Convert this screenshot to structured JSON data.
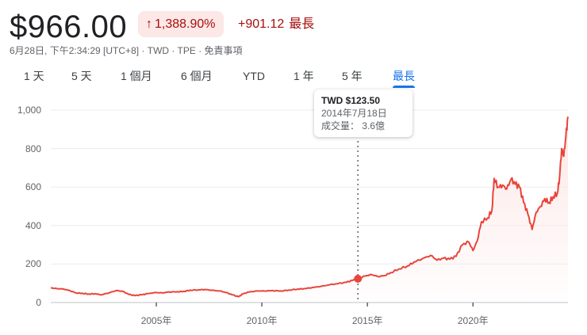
{
  "header": {
    "price": "$966.00",
    "change_arrow": "↑",
    "change_percent": "1,388.90%",
    "change_value": "+901.12",
    "period_label": "最長",
    "meta": {
      "timestamp": "6月28日, 下午2:34:29 [UTC+8]",
      "currency": "TWD",
      "exchange": "TPE",
      "disclaimer": "免責事項",
      "sep": " · "
    }
  },
  "tabs": [
    {
      "label": "1 天",
      "active": false
    },
    {
      "label": "5 天",
      "active": false
    },
    {
      "label": "1 個月",
      "active": false
    },
    {
      "label": "6 個月",
      "active": false
    },
    {
      "label": "YTD",
      "active": false
    },
    {
      "label": "1 年",
      "active": false
    },
    {
      "label": "5 年",
      "active": false
    },
    {
      "label": "最長",
      "active": true
    }
  ],
  "tooltip": {
    "price": "TWD $123.50",
    "date": "2014年7月18日",
    "volume_label": "成交量：",
    "volume_value": "3.6億"
  },
  "colors": {
    "line": "#e8453c",
    "fill": "#fce8e6",
    "negative_text": "#a50e0e",
    "badge_bg": "#fce8e6",
    "accent": "#1a73e8",
    "grid": "#ebebeb"
  },
  "chart_data": {
    "type": "line",
    "title": "",
    "xlabel": "",
    "ylabel": "",
    "ylim": [
      0,
      1000
    ],
    "yticks": [
      0,
      200,
      400,
      600,
      800,
      1000
    ],
    "ytick_labels": [
      "0",
      "200",
      "400",
      "600",
      "800",
      "1,000"
    ],
    "xticks": [
      2005,
      2010,
      2015,
      2020
    ],
    "xtick_labels": [
      "2005年",
      "2010年",
      "2015年",
      "2020年"
    ],
    "xlim": [
      2000.0,
      2024.5
    ],
    "grid": true,
    "legend": "none",
    "highlight": {
      "x": 2014.55,
      "y": 123.5
    },
    "series": [
      {
        "name": "TWD",
        "x": [
          2000.0,
          2000.3,
          2000.6,
          2000.9,
          2001.2,
          2001.5,
          2001.8,
          2002.1,
          2002.4,
          2002.8,
          2003.1,
          2003.4,
          2003.7,
          2004.0,
          2004.3,
          2004.6,
          2005.0,
          2005.3,
          2005.6,
          2006.0,
          2006.3,
          2006.6,
          2007.0,
          2007.3,
          2007.6,
          2008.0,
          2008.3,
          2008.6,
          2008.9,
          2009.1,
          2009.4,
          2009.8,
          2010.1,
          2010.5,
          2010.9,
          2011.3,
          2011.7,
          2012.0,
          2012.4,
          2012.8,
          2013.2,
          2013.6,
          2014.0,
          2014.3,
          2014.55,
          2014.9,
          2015.2,
          2015.5,
          2015.8,
          2016.1,
          2016.5,
          2016.9,
          2017.2,
          2017.6,
          2018.0,
          2018.3,
          2018.6,
          2018.9,
          2019.2,
          2019.5,
          2019.8,
          2020.0,
          2020.2,
          2020.4,
          2020.7,
          2020.9,
          2021.0,
          2021.2,
          2021.4,
          2021.6,
          2021.8,
          2022.0,
          2022.2,
          2022.4,
          2022.6,
          2022.8,
          2023.0,
          2023.2,
          2023.4,
          2023.6,
          2023.8,
          2024.0,
          2024.1,
          2024.2,
          2024.3,
          2024.4,
          2024.5
        ],
        "values": [
          76,
          72,
          70,
          62,
          50,
          48,
          44,
          46,
          40,
          52,
          62,
          58,
          42,
          36,
          40,
          46,
          52,
          50,
          55,
          56,
          58,
          64,
          66,
          68,
          64,
          60,
          52,
          40,
          30,
          45,
          55,
          60,
          60,
          62,
          60,
          65,
          70,
          72,
          78,
          84,
          92,
          98,
          105,
          115,
          123.5,
          138,
          145,
          135,
          140,
          155,
          175,
          190,
          210,
          228,
          245,
          220,
          230,
          225,
          240,
          300,
          315,
          270,
          320,
          420,
          440,
          480,
          645,
          600,
          610,
          590,
          640,
          615,
          600,
          520,
          460,
          380,
          470,
          500,
          540,
          520,
          550,
          570,
          650,
          800,
          760,
          860,
          966
        ]
      }
    ]
  }
}
